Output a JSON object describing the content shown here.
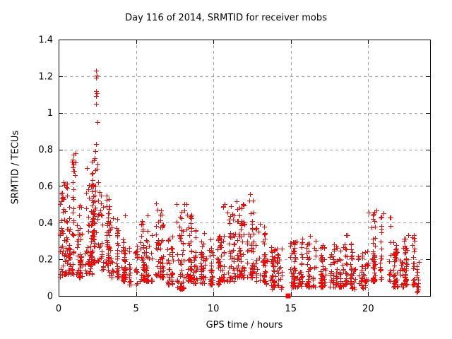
{
  "chart_data": {
    "type": "scatter",
    "title": "Day 116 of 2014, SRMTID for receiver mobs",
    "xlabel": "GPS time / hours",
    "ylabel": "SRMTID / TECUs",
    "xlim": [
      0,
      24
    ],
    "ylim": [
      0,
      1.4
    ],
    "xticks": [
      0,
      5,
      10,
      15,
      20
    ],
    "xtick_labels": [
      "0",
      "5",
      "10",
      "15",
      "20"
    ],
    "yticks": [
      0,
      0.2,
      0.4,
      0.6,
      0.8,
      1.0,
      1.2,
      1.4
    ],
    "ytick_labels": [
      "0",
      "0.2",
      "0.4",
      "0.6",
      "0.8",
      "1",
      "1.2",
      "1.4"
    ],
    "grid": true,
    "legend_position": "none",
    "colors": {
      "points": "#ff0000",
      "grid": "#a0a0a0",
      "border": "#000000",
      "text": "#000000",
      "background": "#ffffff"
    },
    "series": [
      {
        "name": "srmtid-points",
        "marker": "plus",
        "color": "#ff0000",
        "seed": 116,
        "peak_points": [
          [
            2.42,
            1.23
          ],
          [
            2.45,
            1.205
          ],
          [
            2.42,
            1.19
          ],
          [
            2.44,
            1.12
          ],
          [
            2.46,
            1.105
          ],
          [
            2.44,
            1.09
          ],
          [
            2.43,
            1.05
          ],
          [
            2.52,
            0.95
          ],
          [
            2.42,
            0.83
          ],
          [
            2.37,
            0.79
          ],
          [
            2.5,
            0.72
          ],
          [
            2.48,
            0.695
          ],
          [
            1.83,
            0.7
          ],
          [
            1.08,
            0.78
          ],
          [
            1.1,
            0.73
          ],
          [
            1.06,
            0.66
          ],
          [
            0.33,
            0.62
          ],
          [
            0.12,
            0.56
          ],
          [
            12.35,
            0.555
          ],
          [
            12.3,
            0.52
          ],
          [
            11.5,
            0.515
          ],
          [
            11.9,
            0.5
          ],
          [
            10.7,
            0.5
          ],
          [
            20.55,
            0.465
          ],
          [
            21.0,
            0.45
          ],
          [
            8.28,
            0.5
          ],
          [
            7.6,
            0.5
          ],
          [
            6.4,
            0.47
          ],
          [
            4.3,
            0.44
          ],
          [
            5.75,
            0.44
          ],
          [
            20.3,
            0.44
          ],
          [
            21.4,
            0.43
          ],
          [
            22.6,
            0.33
          ],
          [
            18.65,
            0.33
          ],
          [
            23.15,
            0.02
          ]
        ],
        "density_segments": [
          {
            "x0": 0.02,
            "x1": 0.3,
            "n": 28,
            "ymin": 0.1,
            "ymax": 0.57,
            "bias": 1.7
          },
          {
            "x0": 0.3,
            "x1": 0.6,
            "n": 30,
            "ymin": 0.12,
            "ymax": 0.63,
            "bias": 1.6
          },
          {
            "x0": 0.6,
            "x1": 0.85,
            "n": 25,
            "ymin": 0.12,
            "ymax": 0.5,
            "bias": 1.8
          },
          {
            "x0": 0.85,
            "x1": 1.25,
            "n": 35,
            "ymin": 0.12,
            "ymax": 0.78,
            "bias": 2.0
          },
          {
            "x0": 1.25,
            "x1": 1.7,
            "n": 40,
            "ymin": 0.1,
            "ymax": 0.5,
            "bias": 2.0
          },
          {
            "x0": 1.7,
            "x1": 2.15,
            "n": 48,
            "ymin": 0.12,
            "ymax": 0.62,
            "bias": 1.9
          },
          {
            "x0": 2.15,
            "x1": 2.65,
            "n": 70,
            "ymin": 0.18,
            "ymax": 0.76,
            "bias": 1.4
          },
          {
            "x0": 2.65,
            "x1": 3.3,
            "n": 55,
            "ymin": 0.14,
            "ymax": 0.55,
            "bias": 1.8
          },
          {
            "x0": 3.3,
            "x1": 3.9,
            "n": 45,
            "ymin": 0.1,
            "ymax": 0.44,
            "bias": 1.8
          },
          {
            "x0": 3.9,
            "x1": 4.55,
            "n": 40,
            "ymin": 0.08,
            "ymax": 0.32,
            "bias": 1.7
          },
          {
            "x0": 4.55,
            "x1": 5.05,
            "n": 30,
            "ymin": 0.06,
            "ymax": 0.28,
            "bias": 1.6
          },
          {
            "x0": 5.05,
            "x1": 5.65,
            "n": 38,
            "ymin": 0.08,
            "ymax": 0.42,
            "bias": 2.0
          },
          {
            "x0": 5.65,
            "x1": 6.2,
            "n": 35,
            "ymin": 0.08,
            "ymax": 0.36,
            "bias": 1.9
          },
          {
            "x0": 6.2,
            "x1": 6.95,
            "n": 55,
            "ymin": 0.1,
            "ymax": 0.52,
            "bias": 2.0
          },
          {
            "x0": 6.95,
            "x1": 7.45,
            "n": 35,
            "ymin": 0.06,
            "ymax": 0.33,
            "bias": 1.8
          },
          {
            "x0": 7.45,
            "x1": 8.1,
            "n": 50,
            "ymin": 0.04,
            "ymax": 0.5,
            "bias": 2.2
          },
          {
            "x0": 8.1,
            "x1": 8.6,
            "n": 45,
            "ymin": 0.08,
            "ymax": 0.45,
            "bias": 2.0
          },
          {
            "x0": 8.6,
            "x1": 9.6,
            "n": 60,
            "ymin": 0.07,
            "ymax": 0.36,
            "bias": 2.0
          },
          {
            "x0": 9.6,
            "x1": 10.6,
            "n": 65,
            "ymin": 0.06,
            "ymax": 0.35,
            "bias": 2.0
          },
          {
            "x0": 10.6,
            "x1": 11.3,
            "n": 55,
            "ymin": 0.08,
            "ymax": 0.5,
            "bias": 2.1
          },
          {
            "x0": 11.3,
            "x1": 11.8,
            "n": 45,
            "ymin": 0.1,
            "ymax": 0.5,
            "bias": 1.9
          },
          {
            "x0": 11.8,
            "x1": 12.7,
            "n": 62,
            "ymin": 0.1,
            "ymax": 0.55,
            "bias": 2.1
          },
          {
            "x0": 12.7,
            "x1": 13.4,
            "n": 50,
            "ymin": 0.08,
            "ymax": 0.45,
            "bias": 2.2
          },
          {
            "x0": 13.4,
            "x1": 14.6,
            "n": 70,
            "ymin": 0.04,
            "ymax": 0.28,
            "bias": 1.8
          },
          {
            "x0": 14.6,
            "x1": 15.6,
            "n": 60,
            "ymin": 0.05,
            "ymax": 0.3,
            "bias": 1.8
          },
          {
            "x0": 15.6,
            "x1": 16.6,
            "n": 60,
            "ymin": 0.05,
            "ymax": 0.33,
            "bias": 1.9
          },
          {
            "x0": 16.6,
            "x1": 17.6,
            "n": 60,
            "ymin": 0.05,
            "ymax": 0.28,
            "bias": 1.8
          },
          {
            "x0": 17.6,
            "x1": 18.4,
            "n": 50,
            "ymin": 0.05,
            "ymax": 0.28,
            "bias": 1.8
          },
          {
            "x0": 18.4,
            "x1": 18.9,
            "n": 35,
            "ymin": 0.06,
            "ymax": 0.34,
            "bias": 1.7
          },
          {
            "x0": 18.9,
            "x1": 19.8,
            "n": 55,
            "ymin": 0.04,
            "ymax": 0.25,
            "bias": 1.7
          },
          {
            "x0": 19.8,
            "x1": 21.5,
            "n": 85,
            "ymin": 0.08,
            "ymax": 0.46,
            "bias": 2.0
          },
          {
            "x0": 21.5,
            "x1": 22.3,
            "n": 55,
            "ymin": 0.05,
            "ymax": 0.3,
            "bias": 2.0
          },
          {
            "x0": 22.3,
            "x1": 23.0,
            "n": 55,
            "ymin": 0.06,
            "ymax": 0.34,
            "bias": 1.8
          },
          {
            "x0": 23.0,
            "x1": 23.25,
            "n": 15,
            "ymin": 0.02,
            "ymax": 0.22,
            "bias": 1.5
          }
        ]
      },
      {
        "name": "zero-marker",
        "marker": "filled-square",
        "color": "#ff0000",
        "points": [
          [
            14.83,
            0.0
          ]
        ]
      }
    ]
  }
}
